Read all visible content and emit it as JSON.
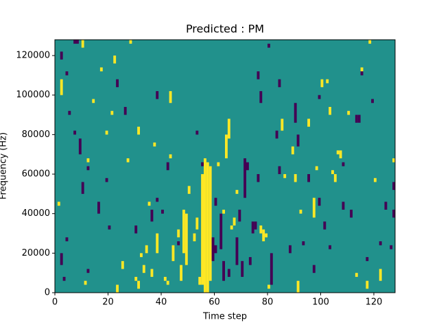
{
  "chart_data": {
    "type": "heatmap",
    "title": "Predicted : PM",
    "xlabel": "Time step",
    "ylabel": "Frequency (Hz)",
    "xlim": [
      0,
      128
    ],
    "ylim": [
      0,
      128000
    ],
    "xticks": [
      0,
      20,
      40,
      60,
      80,
      100,
      120
    ],
    "yticks": [
      0,
      20000,
      40000,
      60000,
      80000,
      100000,
      120000
    ],
    "background_value": 0.5,
    "colormap": [
      {
        "value": 0,
        "color": "#440154"
      },
      {
        "value": 0.5,
        "color": "#21918c"
      },
      {
        "value": 1,
        "color": "#fde725"
      }
    ],
    "cells": [
      [
        55,
        4000,
        60000,
        1
      ],
      [
        56,
        0,
        68000,
        1
      ],
      [
        57,
        0,
        66000,
        1
      ],
      [
        58,
        6000,
        64000,
        1
      ],
      [
        54,
        4000,
        8000,
        1
      ],
      [
        53,
        32000,
        38000,
        1
      ],
      [
        52,
        26000,
        30000,
        1
      ],
      [
        64,
        68000,
        80000,
        1
      ],
      [
        65,
        78000,
        88000,
        1
      ],
      [
        49,
        14000,
        40000,
        1
      ],
      [
        48,
        20000,
        42000,
        1
      ],
      [
        47,
        6000,
        14000,
        1
      ],
      [
        46,
        28000,
        32000,
        1
      ],
      [
        43,
        96000,
        102000,
        1
      ],
      [
        44,
        16000,
        24000,
        1
      ],
      [
        38,
        20000,
        30000,
        1
      ],
      [
        34,
        20000,
        24000,
        1
      ],
      [
        33,
        10000,
        14000,
        1
      ],
      [
        32,
        18000,
        20000,
        1
      ],
      [
        35,
        44000,
        46000,
        1
      ],
      [
        36,
        8000,
        12000,
        1
      ],
      [
        31,
        2000,
        6000,
        1
      ],
      [
        30,
        6000,
        8000,
        1
      ],
      [
        42,
        4000,
        6000,
        1
      ],
      [
        41,
        6000,
        8000,
        1
      ],
      [
        61,
        64000,
        66000,
        1
      ],
      [
        63,
        40000,
        42000,
        1
      ],
      [
        67,
        34000,
        38000,
        1
      ],
      [
        66,
        32000,
        34000,
        1
      ],
      [
        68,
        50000,
        52000,
        1
      ],
      [
        77,
        30000,
        34000,
        1
      ],
      [
        78,
        26000,
        32000,
        1
      ],
      [
        79,
        28000,
        30000,
        1
      ],
      [
        80,
        2000,
        4000,
        1
      ],
      [
        85,
        82000,
        88000,
        1
      ],
      [
        86,
        58000,
        60000,
        1
      ],
      [
        89,
        70000,
        74000,
        1
      ],
      [
        90,
        56000,
        60000,
        1
      ],
      [
        91,
        0,
        6000,
        1
      ],
      [
        92,
        40000,
        42000,
        1
      ],
      [
        95,
        84000,
        88000,
        1
      ],
      [
        97,
        38000,
        48000,
        1
      ],
      [
        98,
        62000,
        64000,
        1
      ],
      [
        106,
        70000,
        72000,
        1
      ],
      [
        107,
        68000,
        72000,
        1
      ],
      [
        104,
        60000,
        62000,
        1
      ],
      [
        105,
        56000,
        60000,
        1
      ],
      [
        110,
        90000,
        92000,
        1
      ],
      [
        113,
        8000,
        10000,
        1
      ],
      [
        120,
        56000,
        58000,
        1
      ],
      [
        122,
        6000,
        12000,
        1
      ],
      [
        118,
        126000,
        128000,
        1
      ],
      [
        117,
        2000,
        6000,
        1
      ],
      [
        2,
        100000,
        108000,
        1
      ],
      [
        1,
        44000,
        46000,
        1
      ],
      [
        10,
        124000,
        128000,
        1
      ],
      [
        11,
        4000,
        6000,
        1
      ],
      [
        12,
        66000,
        68000,
        1
      ],
      [
        14,
        96000,
        98000,
        1
      ],
      [
        17,
        112000,
        114000,
        1
      ],
      [
        19,
        80000,
        82000,
        1
      ],
      [
        21,
        90000,
        92000,
        1
      ],
      [
        28,
        126000,
        128000,
        1
      ],
      [
        27,
        66000,
        68000,
        1
      ],
      [
        22,
        116000,
        120000,
        1
      ],
      [
        23,
        0,
        4000,
        1
      ],
      [
        31,
        80000,
        84000,
        1
      ],
      [
        25,
        12000,
        16000,
        1
      ],
      [
        100,
        104000,
        108000,
        1
      ],
      [
        102,
        106000,
        108000,
        1
      ],
      [
        127,
        66000,
        68000,
        1
      ],
      [
        115,
        112000,
        114000,
        1
      ],
      [
        103,
        90000,
        94000,
        1
      ],
      [
        43,
        68000,
        70000,
        1
      ],
      [
        37,
        74000,
        76000,
        1
      ],
      [
        50,
        50000,
        54000,
        1
      ],
      [
        7,
        126000,
        128000,
        0
      ],
      [
        8,
        126000,
        128000,
        0
      ],
      [
        71,
        48000,
        68000,
        0
      ],
      [
        72,
        62000,
        66000,
        0
      ],
      [
        74,
        30000,
        36000,
        0
      ],
      [
        75,
        32000,
        36000,
        0
      ],
      [
        59,
        16000,
        28000,
        0
      ],
      [
        60,
        20000,
        24000,
        0
      ],
      [
        62,
        22000,
        40000,
        0
      ],
      [
        63,
        6000,
        16000,
        0
      ],
      [
        65,
        8000,
        12000,
        0
      ],
      [
        68,
        14000,
        28000,
        0
      ],
      [
        70,
        8000,
        16000,
        0
      ],
      [
        73,
        14000,
        18000,
        0
      ],
      [
        76,
        56000,
        60000,
        0
      ],
      [
        81,
        4000,
        20000,
        0
      ],
      [
        84,
        60000,
        64000,
        0
      ],
      [
        88,
        20000,
        24000,
        0
      ],
      [
        91,
        74000,
        80000,
        0
      ],
      [
        90,
        86000,
        96000,
        0
      ],
      [
        83,
        78000,
        82000,
        0
      ],
      [
        76,
        108000,
        112000,
        0
      ],
      [
        77,
        96000,
        102000,
        0
      ],
      [
        113,
        86000,
        90000,
        0
      ],
      [
        114,
        86000,
        90000,
        0
      ],
      [
        108,
        42000,
        46000,
        0
      ],
      [
        111,
        38000,
        42000,
        0
      ],
      [
        122,
        24000,
        26000,
        0
      ],
      [
        126,
        22000,
        24000,
        0
      ],
      [
        127,
        38000,
        42000,
        0
      ],
      [
        127,
        52000,
        56000,
        0
      ],
      [
        124,
        42000,
        46000,
        0
      ],
      [
        117,
        16000,
        18000,
        0
      ],
      [
        108,
        64000,
        66000,
        0
      ],
      [
        2,
        118000,
        122000,
        0
      ],
      [
        4,
        110000,
        112000,
        0
      ],
      [
        5,
        90000,
        92000,
        0
      ],
      [
        7,
        80000,
        82000,
        0
      ],
      [
        9,
        70000,
        78000,
        0
      ],
      [
        10,
        50000,
        56000,
        0
      ],
      [
        12,
        62000,
        64000,
        0
      ],
      [
        16,
        40000,
        46000,
        0
      ],
      [
        19,
        56000,
        58000,
        0
      ],
      [
        20,
        32000,
        34000,
        0
      ],
      [
        23,
        104000,
        108000,
        0
      ],
      [
        26,
        90000,
        94000,
        0
      ],
      [
        30,
        30000,
        34000,
        0
      ],
      [
        36,
        36000,
        42000,
        0
      ],
      [
        40,
        40000,
        42000,
        0
      ],
      [
        42,
        62000,
        66000,
        0
      ],
      [
        38,
        98000,
        102000,
        0
      ],
      [
        53,
        80000,
        82000,
        0
      ],
      [
        95,
        56000,
        60000,
        0
      ],
      [
        99,
        44000,
        48000,
        0
      ],
      [
        93,
        24000,
        26000,
        0
      ],
      [
        101,
        32000,
        36000,
        0
      ],
      [
        97,
        10000,
        14000,
        0
      ],
      [
        103,
        22000,
        24000,
        0
      ],
      [
        80,
        124000,
        126000,
        0
      ],
      [
        84,
        104000,
        108000,
        0
      ],
      [
        99,
        98000,
        100000,
        0
      ],
      [
        115,
        110000,
        112000,
        0
      ],
      [
        119,
        96000,
        98000,
        0
      ],
      [
        2,
        14000,
        20000,
        0
      ],
      [
        3,
        6000,
        8000,
        0
      ],
      [
        4,
        26000,
        28000,
        0
      ],
      [
        12,
        10000,
        12000,
        0
      ],
      [
        38,
        46000,
        48000,
        0
      ],
      [
        46,
        24000,
        26000,
        0
      ],
      [
        55,
        64000,
        66000,
        0
      ],
      [
        60,
        44000,
        48000,
        0
      ],
      [
        69,
        36000,
        42000,
        0
      ]
    ]
  }
}
